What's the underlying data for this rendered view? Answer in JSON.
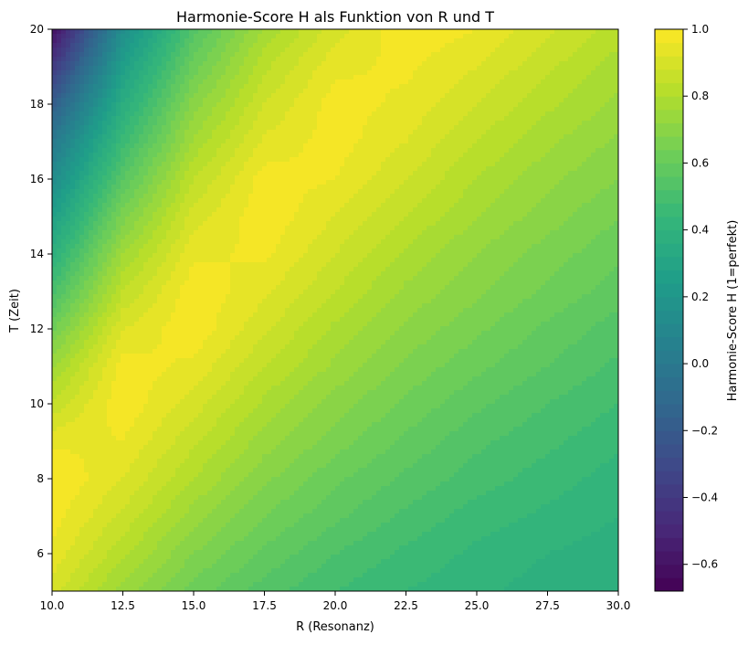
{
  "chart_data": {
    "type": "heatmap",
    "title": "Harmonie-Score H als Funktion von R und T",
    "xlabel": "R (Resonanz)",
    "ylabel": "T (Zeit)",
    "xlim": [
      10.0,
      30.0
    ],
    "ylim": [
      5,
      20
    ],
    "x_ticks": [
      "10.0",
      "12.5",
      "15.0",
      "17.5",
      "20.0",
      "22.5",
      "25.0",
      "27.5",
      "30.0"
    ],
    "y_ticks": [
      "6",
      "8",
      "10",
      "12",
      "14",
      "16",
      "18",
      "20"
    ],
    "colorbar": {
      "label": "Harmonie-Score H (1=perfekt)",
      "range": [
        -0.68,
        1.0
      ],
      "ticks": [
        "1.0",
        "0.8",
        "0.6",
        "0.4",
        "0.2",
        "0.0",
        "−0.2",
        "−0.4",
        "−0.6"
      ],
      "colormap": "viridis"
    },
    "grid": false,
    "levels": [
      -0.68,
      -0.64,
      -0.6,
      -0.56,
      -0.52,
      -0.48,
      -0.44,
      -0.4,
      -0.36,
      -0.32,
      -0.28,
      -0.24,
      -0.2,
      -0.16,
      -0.12,
      -0.08,
      -0.04,
      0.0,
      0.04,
      0.08,
      0.12,
      0.16,
      0.2,
      0.24,
      0.28,
      0.32,
      0.36,
      0.4,
      0.44,
      0.48,
      0.52,
      0.56,
      0.6,
      0.64,
      0.68,
      0.72,
      0.76,
      0.8,
      0.84,
      0.88,
      0.92,
      0.96,
      1.0
    ],
    "field": {
      "x": [
        10,
        12.5,
        15,
        17.5,
        20,
        22.5,
        25,
        27.5,
        30
      ],
      "y": [
        5,
        6,
        7,
        8,
        9,
        10,
        11,
        12,
        13,
        14,
        15,
        16,
        17,
        18,
        19,
        20
      ],
      "z": [
        [
          0.9,
          0.74,
          0.62,
          0.54,
          0.48,
          0.44,
          0.41,
          0.38,
          0.36
        ],
        [
          0.95,
          0.81,
          0.68,
          0.59,
          0.52,
          0.47,
          0.43,
          0.4,
          0.38
        ],
        [
          0.98,
          0.87,
          0.74,
          0.64,
          0.57,
          0.51,
          0.46,
          0.43,
          0.4
        ],
        [
          1.0,
          0.92,
          0.8,
          0.69,
          0.61,
          0.55,
          0.5,
          0.46,
          0.42
        ],
        [
          0.95,
          0.96,
          0.85,
          0.74,
          0.66,
          0.59,
          0.53,
          0.49,
          0.45
        ],
        [
          0.85,
          0.99,
          0.9,
          0.79,
          0.7,
          0.63,
          0.57,
          0.52,
          0.48
        ],
        [
          0.75,
          0.98,
          0.95,
          0.84,
          0.75,
          0.67,
          0.61,
          0.56,
          0.51
        ],
        [
          0.63,
          0.92,
          0.99,
          0.89,
          0.79,
          0.71,
          0.65,
          0.59,
          0.54
        ],
        [
          0.5,
          0.84,
          0.99,
          0.93,
          0.84,
          0.75,
          0.69,
          0.63,
          0.58
        ],
        [
          0.38,
          0.76,
          0.95,
          0.97,
          0.88,
          0.79,
          0.72,
          0.66,
          0.61
        ],
        [
          0.26,
          0.66,
          0.9,
          0.99,
          0.92,
          0.84,
          0.76,
          0.7,
          0.64
        ],
        [
          0.13,
          0.56,
          0.84,
          0.98,
          0.96,
          0.88,
          0.8,
          0.73,
          0.68
        ],
        [
          0.0,
          0.46,
          0.77,
          0.93,
          0.98,
          0.92,
          0.84,
          0.77,
          0.71
        ],
        [
          -0.18,
          0.36,
          0.7,
          0.88,
          0.98,
          0.95,
          0.88,
          0.81,
          0.75
        ],
        [
          -0.4,
          0.26,
          0.62,
          0.83,
          0.95,
          0.97,
          0.92,
          0.85,
          0.78
        ],
        [
          -0.62,
          0.15,
          0.54,
          0.77,
          0.9,
          0.99,
          0.96,
          0.89,
          0.82
        ]
      ]
    }
  }
}
